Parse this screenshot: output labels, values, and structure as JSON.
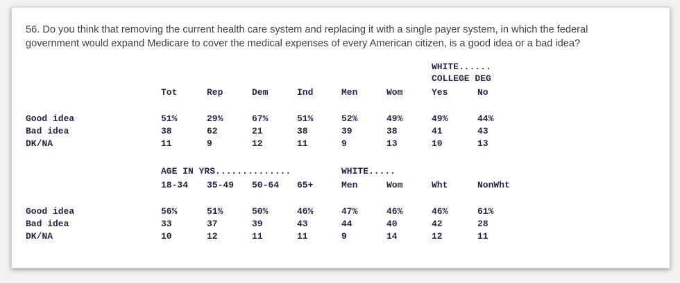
{
  "question": {
    "line1": "56. Do you think that removing the current health care system and replacing it with a single payer system, in which the federal",
    "line2": "government would expand Medicare to cover the medical expenses of every American citizen, is a good idea or a bad idea?"
  },
  "table1": {
    "group_header_line1": "WHITE......",
    "group_header_line2": "COLLEGE DEG",
    "columns": [
      "Tot",
      "Rep",
      "Dem",
      "Ind",
      "Men",
      "Wom",
      "Yes",
      "No"
    ],
    "rows": [
      {
        "label": "Good idea",
        "values": [
          "51%",
          "29%",
          "67%",
          "51%",
          "52%",
          "49%",
          "49%",
          "44%"
        ]
      },
      {
        "label": "Bad idea",
        "values": [
          "38",
          "62",
          "21",
          "38",
          "39",
          "38",
          "41",
          "43"
        ]
      },
      {
        "label": "DK/NA",
        "values": [
          "11",
          "9",
          "12",
          "11",
          "9",
          "13",
          "10",
          "13"
        ]
      }
    ]
  },
  "table2": {
    "group_header_age": "AGE IN YRS..............",
    "group_header_white": "WHITE.....",
    "columns": [
      "18-34",
      "35-49",
      "50-64",
      "65+",
      "Men",
      "Wom",
      "Wht",
      "NonWht"
    ],
    "rows": [
      {
        "label": "Good idea",
        "values": [
          "56%",
          "51%",
          "50%",
          "46%",
          "47%",
          "46%",
          "46%",
          "61%"
        ]
      },
      {
        "label": "Bad idea",
        "values": [
          "33",
          "37",
          "39",
          "43",
          "44",
          "40",
          "42",
          "28"
        ]
      },
      {
        "label": "DK/NA",
        "values": [
          "10",
          "12",
          "11",
          "11",
          "9",
          "14",
          "12",
          "11"
        ]
      }
    ]
  }
}
